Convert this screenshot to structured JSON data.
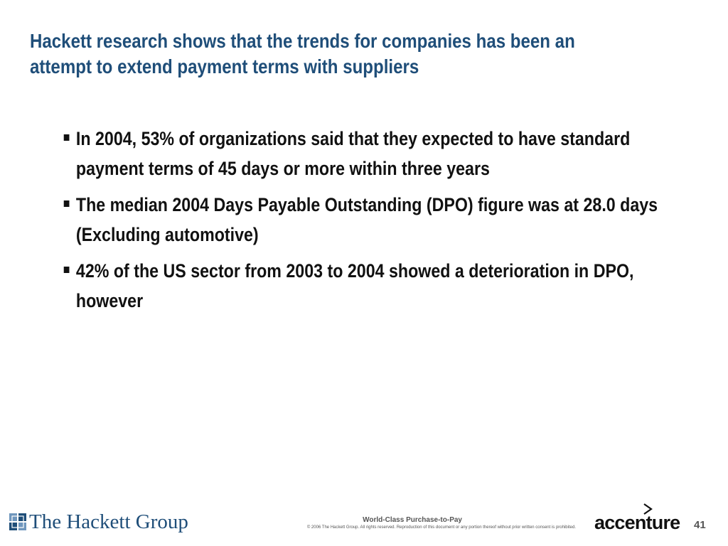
{
  "slide": {
    "title": "Hackett research shows that the trends for companies has been an attempt to extend payment terms with suppliers",
    "bullets": [
      "In 2004, 53% of organizations said that they expected to have standard payment terms of 45 days or more within three years",
      "The median 2004 Days Payable Outstanding (DPO) figure was at 28.0 days (Excluding automotive)",
      "42% of the US sector from 2003 to 2004 showed a deterioration in DPO, however"
    ]
  },
  "footer": {
    "brand_left": "The Hackett Group",
    "line1": "World-Class Purchase-to-Pay",
    "line2": "© 2006 The Hackett Group.  All rights reserved. Reproduction of this document or any portion thereof without prior written consent is prohibited.",
    "brand_right": "accenture",
    "page_number": "41"
  },
  "colors": {
    "title": "#1f4e79",
    "body_text": "#111111",
    "footer_text": "#555555"
  },
  "icons": {
    "bullet": "square-bullet-icon",
    "hackett_logo": "hackett-squares-icon",
    "accenture_logo": "accenture-greater-than-icon"
  }
}
